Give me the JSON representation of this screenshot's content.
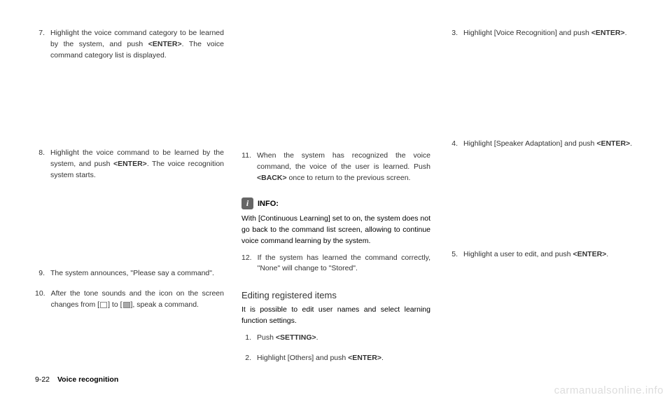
{
  "col1": {
    "item7": {
      "num": "7.",
      "text_before": "Highlight the voice command category to be learned by the system, and push ",
      "key": "<ENTER>",
      "text_after": ". The voice command category list is displayed."
    },
    "item8": {
      "num": "8.",
      "text_before": "Highlight the voice command to be learned by the system, and push ",
      "key": "<ENTER>",
      "text_after": ". The voice recognition system starts."
    },
    "item9": {
      "num": "9.",
      "text": "The system announces, \"Please say a command\"."
    },
    "item10": {
      "num": "10.",
      "text_before": "After the tone sounds and the icon on the screen changes from [",
      "text_mid": "] to [",
      "text_after": "], speak a command."
    }
  },
  "col2": {
    "item11": {
      "num": "11.",
      "text_before": "When the system has recognized the voice command, the voice of the user is learned. Push ",
      "key": "<BACK>",
      "text_after": " once to return to the previous screen."
    },
    "info_label": "INFO:",
    "info_icon": "i",
    "info_text": "With [Continuous Learning] set to on, the system does not go back to the command list screen, allowing to continue voice command learning by the system.",
    "item12": {
      "num": "12.",
      "text": "If the system has learned the command correctly, \"None\" will change to \"Stored\"."
    },
    "subheading": "Editing registered items",
    "body_text": "It is possible to edit user names and select learning function settings.",
    "step1": {
      "num": "1.",
      "text_before": "Push ",
      "key": "<SETTING>",
      "text_after": "."
    },
    "step2": {
      "num": "2.",
      "text_before": "Highlight [Others] and push ",
      "key": "<ENTER>",
      "text_after": "."
    }
  },
  "col3": {
    "step3": {
      "num": "3.",
      "text_before": "Highlight [Voice Recognition] and push ",
      "key": "<ENTER>",
      "text_after": "."
    },
    "step4": {
      "num": "4.",
      "text_before": "Highlight [Speaker Adaptation] and push ",
      "key": "<ENTER>",
      "text_after": "."
    },
    "step5": {
      "num": "5.",
      "text_before": "Highlight a user to edit, and push ",
      "key": "<ENTER>",
      "text_after": "."
    }
  },
  "footer": {
    "page": "9-22",
    "section": "Voice recognition"
  },
  "watermark": "carmanualsonline.info"
}
